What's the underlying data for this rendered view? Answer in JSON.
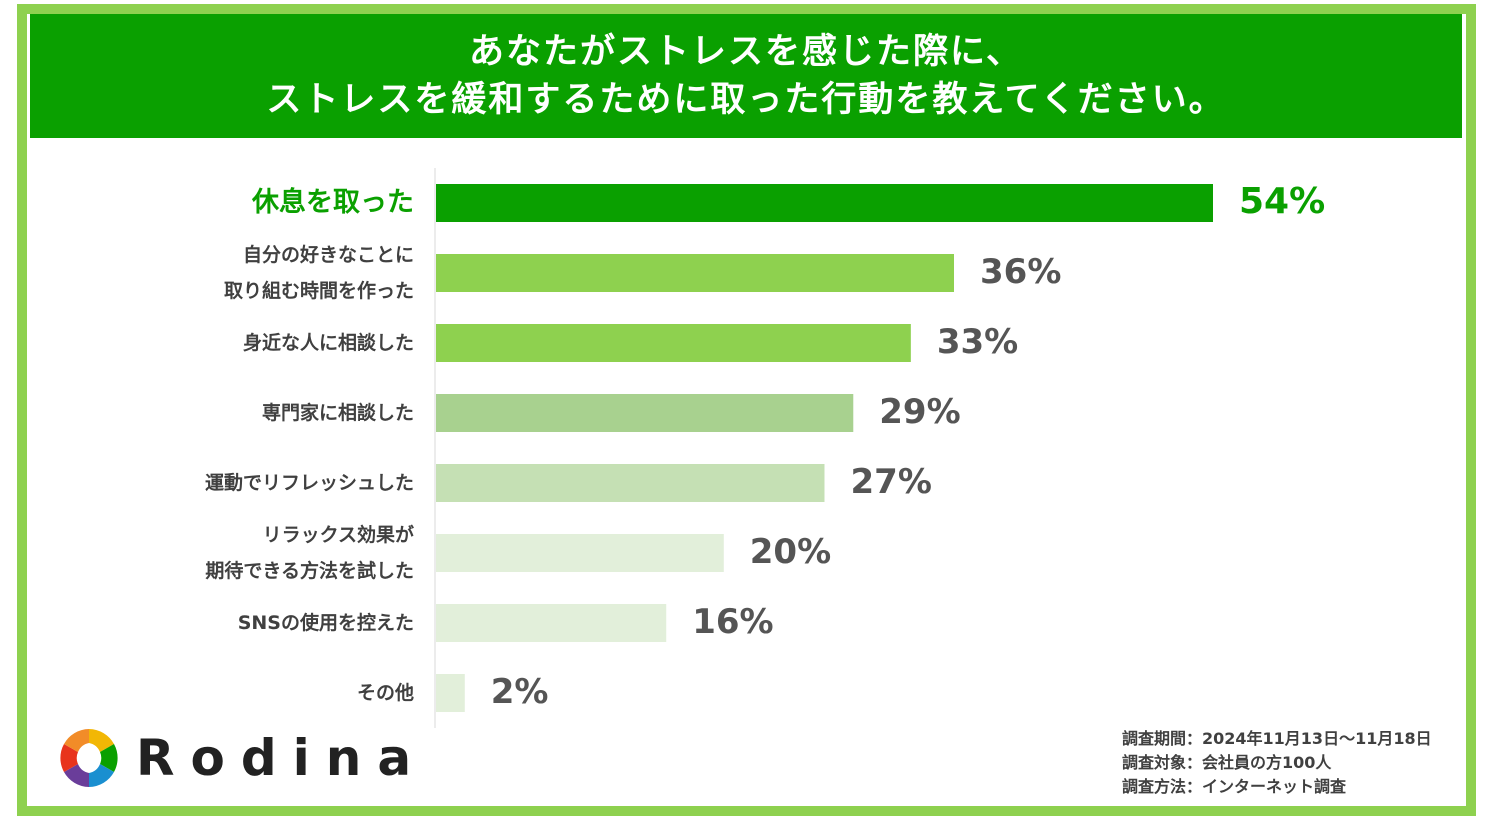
{
  "title": {
    "line1": "あなたがストレスを感じた際に、",
    "line2": "ストレスを緩和するために取った行動を教えてください。"
  },
  "chart_data": {
    "type": "bar",
    "orientation": "horizontal",
    "categories": [
      [
        "休息を取った"
      ],
      [
        "自分の好きなことに",
        "取り組む時間を作った"
      ],
      [
        "身近な人に相談した"
      ],
      [
        "専門家に相談した"
      ],
      [
        "運動でリフレッシュした"
      ],
      [
        "リラックス効果が",
        "期待できる方法を試した"
      ],
      [
        "SNSの使用を控えた"
      ],
      [
        "その他"
      ]
    ],
    "values": [
      54,
      36,
      33,
      29,
      27,
      20,
      16,
      2
    ],
    "value_labels": [
      "54%",
      "36%",
      "33%",
      "29%",
      "27%",
      "20%",
      "16%",
      "2%"
    ],
    "bar_colors": [
      "#0aa000",
      "#8ed14f",
      "#8ed14f",
      "#a8d18f",
      "#c5e0b4",
      "#e2efda",
      "#e2efda",
      "#e2efda"
    ],
    "highlight_color": "#0aa000",
    "xlim": [
      0,
      60
    ]
  },
  "logo": {
    "text": "Rodina"
  },
  "survey": {
    "period": "調査期間：2024年11月13日～11月18日",
    "target": "調査対象：会社員の方100人",
    "method": "調査方法：インターネット調査"
  },
  "colors": {
    "brand_green": "#0aa000",
    "light_green": "#8ed14f"
  }
}
